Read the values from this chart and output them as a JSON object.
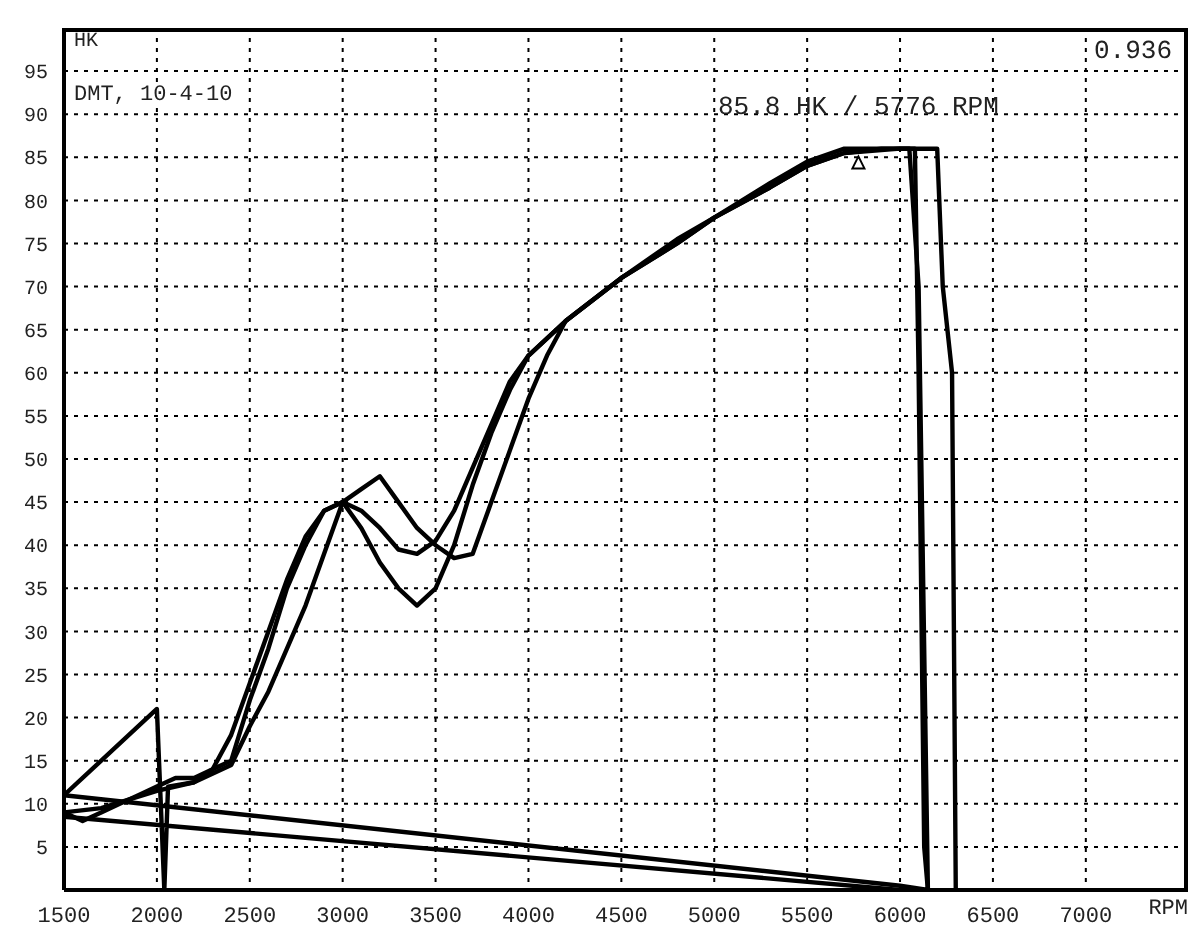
{
  "chart_data": {
    "type": "line",
    "ylabel": "HK",
    "xlabel": "RPM",
    "xlim": [
      1500,
      7550
    ],
    "xticks": [
      1500,
      2000,
      2500,
      3000,
      3500,
      4000,
      4500,
      5000,
      5500,
      6000,
      6500,
      7000
    ],
    "ylim": [
      0,
      100
    ],
    "yticks": [
      5,
      10,
      15,
      20,
      25,
      30,
      35,
      40,
      45,
      50,
      55,
      60,
      65,
      70,
      75,
      80,
      85,
      90,
      95
    ],
    "grid": true,
    "line_style": "solid",
    "marker": "none",
    "annotations": [
      "DMT, 10-4-10",
      "0.936",
      {
        "text": "85.8 HK / 5776 RPM",
        "x": 5776,
        "y": 85.8
      }
    ],
    "series": [
      {
        "color": "#000000",
        "x": [
          1500,
          1600,
          1700,
          1800,
          1900,
          2000,
          2100,
          2200,
          2300,
          2400,
          2500,
          2600,
          2700,
          2800,
          2900,
          3000,
          3100,
          3200,
          3300,
          3400,
          3500,
          3600,
          3700,
          3800,
          3900,
          4000,
          4200,
          4500,
          4800,
          5000,
          5300,
          5500,
          5700,
          5900,
          6080,
          6100,
          6130,
          6150,
          6000,
          1500
        ],
        "values": [
          9,
          8,
          9,
          10,
          11,
          12,
          13,
          13,
          14,
          15,
          22,
          28,
          35,
          40,
          44,
          45,
          44,
          42,
          39.5,
          39,
          40.5,
          44,
          49,
          54,
          59,
          62,
          66,
          71,
          75,
          78,
          81.5,
          84,
          85.5,
          86,
          86,
          60,
          5,
          0,
          0.5,
          11
        ]
      },
      {
        "color": "#000000",
        "x": [
          1500,
          2000,
          2040,
          2060,
          2200,
          2300,
          2400,
          2500,
          2600,
          2700,
          2800,
          2900,
          3000,
          3100,
          3200,
          3300,
          3400,
          3500,
          3600,
          3700,
          3800,
          3900,
          4000,
          4200,
          4500,
          4800,
          5000,
          5300,
          5500,
          5700,
          5900,
          6050,
          6100,
          6150,
          6000,
          1500
        ],
        "values": [
          11,
          21,
          0,
          12,
          12.5,
          14,
          18,
          24,
          30,
          36,
          41,
          44,
          45,
          42,
          38,
          35,
          33,
          35,
          40,
          47,
          53,
          58,
          62,
          66,
          71,
          75.5,
          78,
          82,
          84.5,
          86,
          86,
          86,
          70,
          0,
          0,
          8.5
        ]
      },
      {
        "color": "#000000",
        "x": [
          1500,
          1700,
          2000,
          2200,
          2400,
          2500,
          2600,
          2700,
          2800,
          2900,
          3000,
          3100,
          3200,
          3300,
          3400,
          3500,
          3600,
          3700,
          3800,
          3900,
          4000,
          4100,
          4200,
          4500,
          4800,
          5000,
          5300,
          5500,
          5700,
          6000,
          6200,
          6230,
          6280,
          6300
        ],
        "values": [
          9,
          9.5,
          11.5,
          12.5,
          14.5,
          19,
          23,
          28,
          33,
          39,
          45,
          46.5,
          48,
          45,
          42,
          40,
          38.5,
          39,
          45,
          51,
          57,
          62,
          66,
          71,
          75,
          78,
          81.5,
          84,
          85.5,
          86,
          86,
          70,
          60,
          0
        ]
      }
    ]
  }
}
